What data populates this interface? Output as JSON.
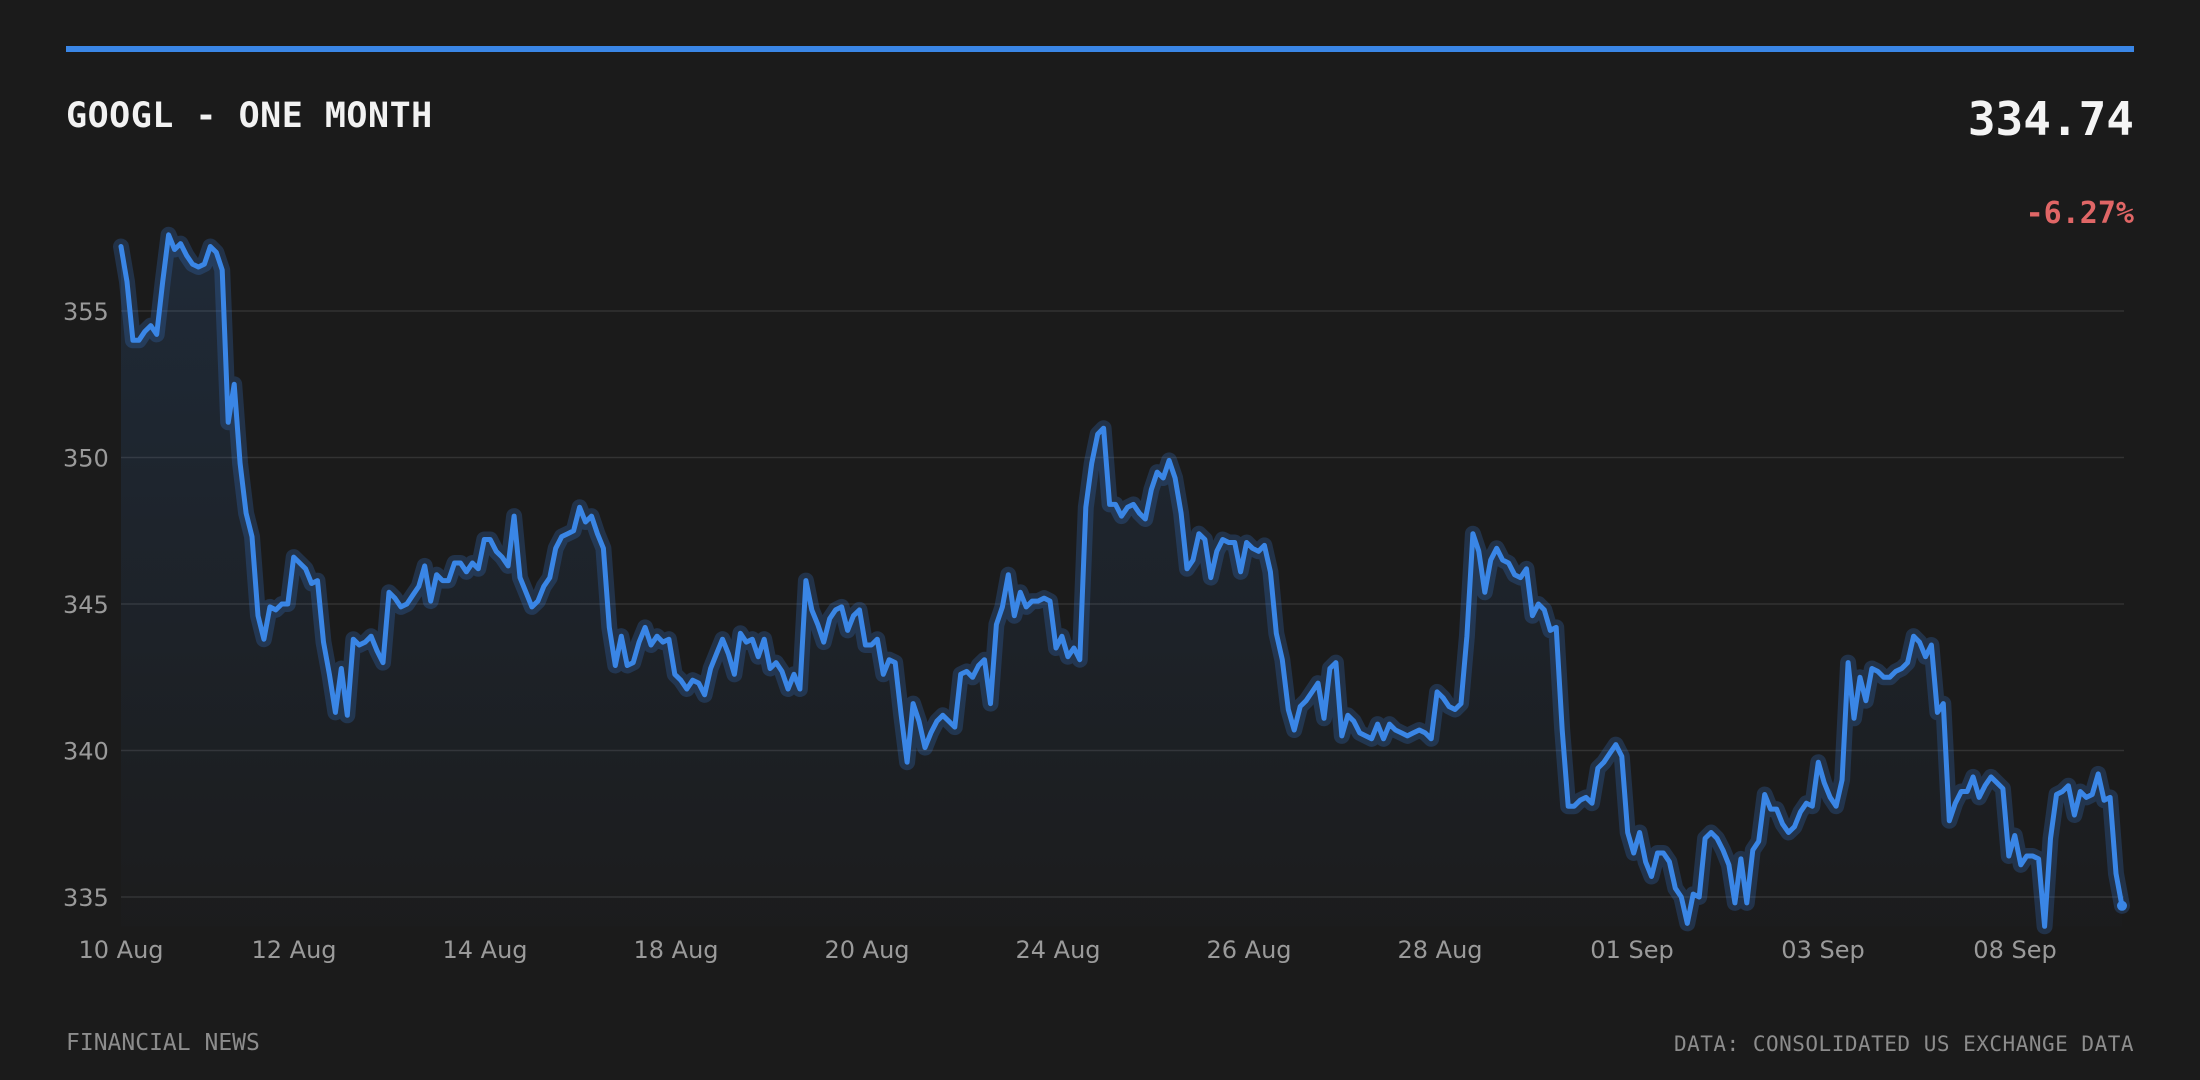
{
  "header": {
    "title": "GOOGL - ONE MONTH",
    "price": "334.74",
    "change": "-6.27%"
  },
  "footer": {
    "source_left": "FINANCIAL NEWS",
    "source_right": "DATA: CONSOLIDATED US EXCHANGE DATA"
  },
  "colors": {
    "accent": "#3a86e6",
    "negative": "#e06666",
    "background": "#1b1b1b",
    "grid": "#333333"
  },
  "chart_data": {
    "type": "line",
    "title": "GOOGL - ONE MONTH",
    "ylim": [
      334,
      358
    ],
    "y_ticks": [
      335,
      340,
      345,
      350,
      355
    ],
    "y_tick_labels": [
      "335",
      "340",
      "345",
      "350",
      "355"
    ],
    "x_tick_labels": [
      "10 Aug",
      "12 Aug",
      "14 Aug",
      "18 Aug",
      "20 Aug",
      "24 Aug",
      "26 Aug",
      "28 Aug",
      "01 Sep",
      "03 Sep",
      "08 Sep"
    ],
    "grid": "horizontal",
    "series": [
      {
        "values": [
          357.2,
          356.0,
          354.0,
          354.0,
          354.3,
          354.5,
          354.2,
          356.0,
          357.6,
          357.1,
          357.3,
          356.9,
          356.6,
          356.5,
          356.6,
          357.2,
          357.0,
          356.4,
          351.2,
          352.5,
          349.8,
          348.1,
          347.3,
          344.6,
          343.8,
          344.9,
          344.8,
          345.0,
          345.0,
          346.6,
          346.4,
          346.2,
          345.7,
          345.8,
          343.7,
          342.6,
          341.3,
          342.8,
          341.2,
          343.8,
          343.6,
          343.7,
          343.9,
          343.4,
          343.0,
          345.4,
          345.2,
          344.9,
          345.0,
          345.3,
          345.6,
          346.3,
          345.1,
          346.0,
          345.8,
          345.8,
          346.4,
          346.4,
          346.1,
          346.4,
          346.2,
          347.2,
          347.2,
          346.8,
          346.6,
          346.3,
          348.0,
          345.9,
          345.4,
          344.9,
          345.1,
          345.6,
          345.9,
          346.9,
          347.3,
          347.4,
          347.5,
          348.3,
          347.8,
          348.0,
          347.4,
          346.9,
          344.2,
          342.9,
          343.9,
          342.9,
          343.0,
          343.7,
          344.2,
          343.6,
          343.9,
          343.7,
          343.8,
          342.6,
          342.4,
          342.1,
          342.4,
          342.3,
          341.9,
          342.8,
          343.3,
          343.8,
          343.3,
          342.6,
          344.0,
          343.7,
          343.8,
          343.2,
          343.8,
          342.8,
          343.0,
          342.7,
          342.1,
          342.6,
          342.1,
          345.8,
          344.8,
          344.3,
          343.7,
          344.5,
          344.8,
          344.9,
          344.1,
          344.6,
          344.8,
          343.6,
          343.6,
          343.8,
          342.6,
          343.1,
          343.0,
          341.2,
          339.6,
          341.6,
          341.0,
          340.1,
          340.6,
          341.0,
          341.2,
          341.0,
          340.8,
          342.6,
          342.7,
          342.5,
          342.9,
          343.1,
          341.6,
          344.3,
          344.9,
          346.0,
          344.6,
          345.4,
          344.9,
          345.1,
          345.1,
          345.2,
          345.1,
          343.5,
          343.9,
          343.2,
          343.5,
          343.1,
          348.3,
          349.8,
          350.8,
          351.0,
          348.4,
          348.4,
          348.0,
          348.3,
          348.4,
          348.1,
          347.9,
          348.9,
          349.5,
          349.3,
          349.9,
          349.3,
          348.1,
          346.2,
          346.5,
          347.4,
          347.2,
          345.9,
          346.8,
          347.2,
          347.1,
          347.1,
          346.1,
          347.1,
          346.9,
          346.8,
          347.0,
          346.1,
          344.0,
          343.1,
          341.4,
          340.7,
          341.5,
          341.7,
          342.0,
          342.3,
          341.1,
          342.8,
          343.0,
          340.5,
          341.2,
          341.0,
          340.6,
          340.5,
          340.4,
          340.9,
          340.4,
          340.9,
          340.7,
          340.6,
          340.5,
          340.6,
          340.7,
          340.6,
          340.4,
          342.0,
          341.8,
          341.5,
          341.4,
          341.6,
          343.9,
          347.4,
          346.8,
          345.4,
          346.5,
          346.9,
          346.5,
          346.4,
          346.0,
          345.9,
          346.2,
          344.6,
          345.0,
          344.8,
          344.1,
          344.2,
          340.7,
          338.1,
          338.1,
          338.3,
          338.4,
          338.2,
          339.4,
          339.6,
          339.9,
          340.2,
          339.8,
          337.2,
          336.5,
          337.2,
          336.2,
          335.7,
          336.5,
          336.5,
          336.2,
          335.3,
          335.0,
          334.1,
          335.1,
          335.0,
          337.0,
          337.2,
          337.0,
          336.6,
          336.1,
          334.8,
          336.3,
          334.8,
          336.6,
          336.9,
          338.5,
          338.0,
          338.0,
          337.5,
          337.2,
          337.4,
          337.9,
          338.2,
          338.1,
          339.6,
          338.9,
          338.4,
          338.1,
          339.0,
          343.0,
          341.1,
          342.5,
          341.7,
          342.8,
          342.7,
          342.5,
          342.5,
          342.7,
          342.8,
          343.0,
          343.9,
          343.7,
          343.2,
          343.6,
          341.3,
          341.6,
          337.6,
          338.2,
          338.6,
          338.6,
          339.1,
          338.4,
          338.8,
          339.1,
          338.9,
          338.7,
          336.4,
          337.1,
          336.1,
          336.4,
          336.4,
          336.3,
          334.0,
          337.0,
          338.5,
          338.6,
          338.8,
          337.8,
          338.6,
          338.4,
          338.5,
          339.2,
          338.3,
          338.4,
          335.8,
          334.7
        ]
      }
    ]
  }
}
